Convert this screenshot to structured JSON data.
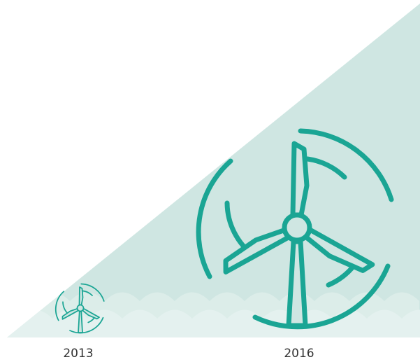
{
  "items": [
    {
      "label": "2013"
    },
    {
      "label": "2016"
    }
  ]
}
